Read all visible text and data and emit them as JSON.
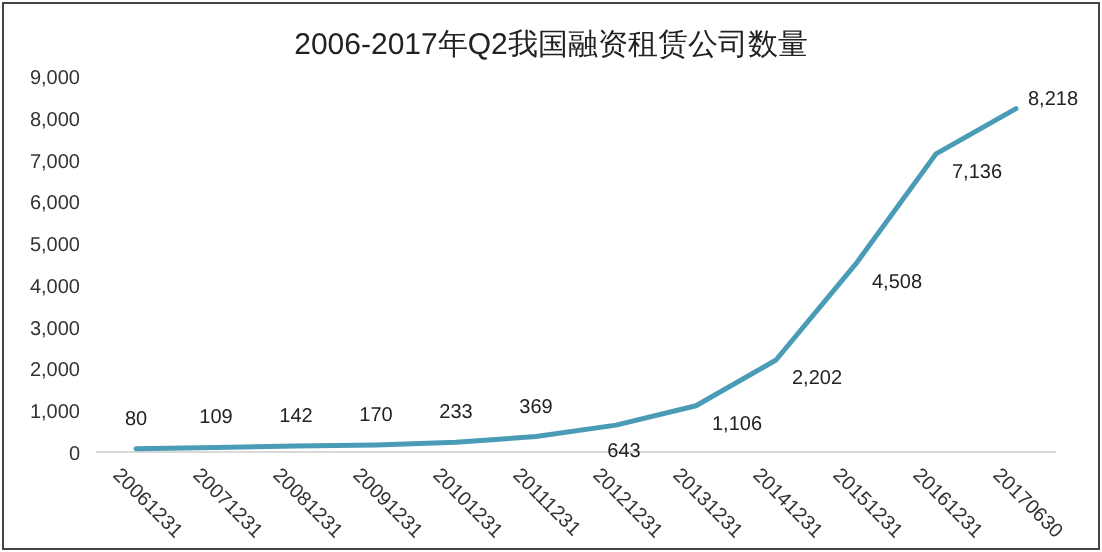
{
  "chart_data": {
    "type": "line",
    "title": "2006-2017年Q2我国融资租赁公司数量",
    "categories": [
      "20061231",
      "20071231",
      "20081231",
      "20091231",
      "20101231",
      "20111231",
      "20121231",
      "20131231",
      "20141231",
      "20151231",
      "20161231",
      "20170630"
    ],
    "series": [
      {
        "color": "#4a9bb5",
        "values": [
          80,
          109,
          142,
          170,
          233,
          369,
          643,
          1106,
          2202,
          4508,
          7136,
          8218
        ]
      }
    ],
    "ylim": [
      0,
      9000
    ],
    "yticks": [
      {
        "value": 0,
        "label": "0"
      },
      {
        "value": 1000,
        "label": "1,000"
      },
      {
        "value": 2000,
        "label": "2,000"
      },
      {
        "value": 3000,
        "label": "3,000"
      },
      {
        "value": 4000,
        "label": "4,000"
      },
      {
        "value": 5000,
        "label": "5,000"
      },
      {
        "value": 6000,
        "label": "6,000"
      },
      {
        "value": 7000,
        "label": "7,000"
      },
      {
        "value": 8000,
        "label": "8,000"
      },
      {
        "value": 9000,
        "label": "9,000"
      }
    ],
    "grid": false,
    "marker": "none",
    "line_style": "solid",
    "value_labels": [
      "80",
      "109",
      "142",
      "170",
      "233",
      "369",
      "643",
      "1,106",
      "2,202",
      "4,508",
      "7,136",
      "8,218"
    ]
  }
}
